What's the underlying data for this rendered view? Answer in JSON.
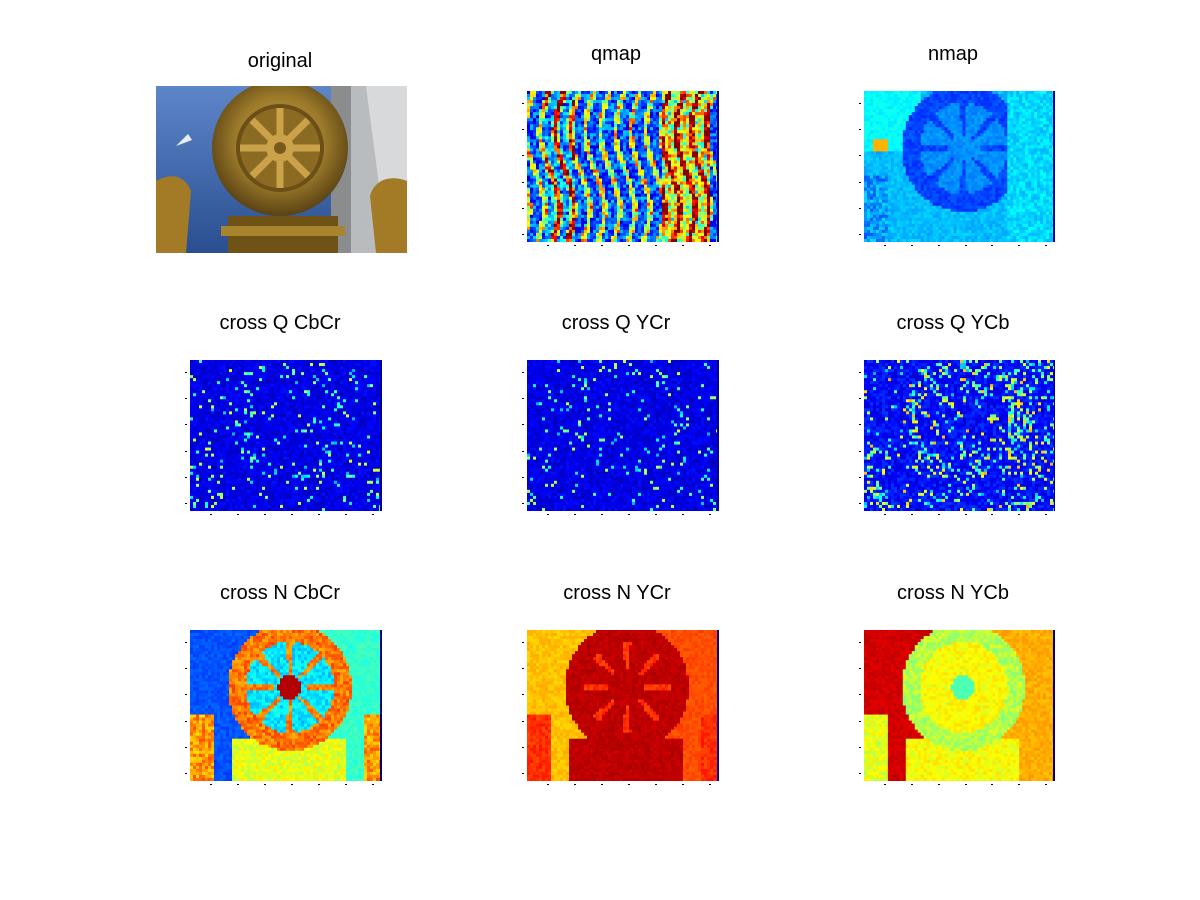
{
  "figure": {
    "panels": [
      {
        "id": "original",
        "title": "original",
        "kind": "photo"
      },
      {
        "id": "qmap",
        "title": "qmap",
        "kind": "qmap"
      },
      {
        "id": "nmap",
        "title": "nmap",
        "kind": "nmap"
      },
      {
        "id": "cross-q-cbcr",
        "title": "cross Q CbCr",
        "kind": "crossq1"
      },
      {
        "id": "cross-q-ycr",
        "title": "cross Q YCr",
        "kind": "crossq2"
      },
      {
        "id": "cross-q-ycb",
        "title": "cross Q YCb",
        "kind": "crossq3"
      },
      {
        "id": "cross-n-cbcr",
        "title": "cross N CbCr",
        "kind": "crossn1"
      },
      {
        "id": "cross-n-ycr",
        "title": "cross N YCr",
        "kind": "crossn2"
      },
      {
        "id": "cross-n-ycb",
        "title": "cross N YCb",
        "kind": "crossn3"
      }
    ],
    "colors": {
      "jet_dark_blue": "#00008f",
      "jet_blue": "#0040ff",
      "jet_cyan": "#40ffff",
      "jet_yellow": "#ffff00",
      "jet_orange": "#ff8000",
      "jet_red": "#e00000",
      "bronze": "#9b7a2a",
      "sky": "#2f5fa8"
    }
  }
}
